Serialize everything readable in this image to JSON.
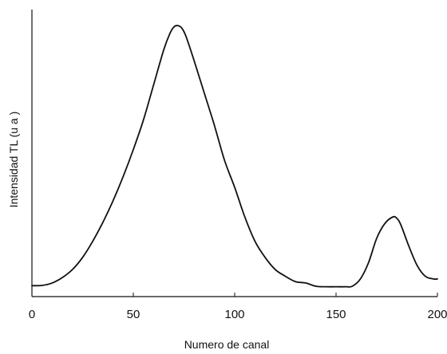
{
  "chart_data": {
    "type": "line",
    "xlabel": "Numero de canal",
    "ylabel": "Intensidad TL (u a )",
    "xlim": [
      0,
      200
    ],
    "ylim": [
      0,
      100
    ],
    "x_ticks": [
      0,
      50,
      100,
      150,
      200
    ],
    "x_tick_labels": [
      "0",
      "50",
      "100",
      "150",
      "200"
    ],
    "y_tick_labels": [],
    "grid": false,
    "legend": "none",
    "series": [
      {
        "x": [
          0,
          5,
          10,
          15,
          20,
          25,
          30,
          35,
          40,
          45,
          50,
          55,
          60,
          65,
          68,
          70,
          72,
          74,
          76,
          80,
          85,
          90,
          95,
          100,
          105,
          110,
          115,
          120,
          125,
          130,
          135,
          140,
          145,
          150,
          155,
          158,
          162,
          166,
          170,
          174,
          178,
          180,
          182,
          186,
          190,
          194,
          198,
          200
        ],
        "y": [
          0.5,
          0.6,
          1.5,
          3.5,
          6.5,
          11,
          17,
          24,
          32,
          41,
          51,
          62,
          75,
          88,
          94,
          96.5,
          97,
          96,
          93,
          84,
          72,
          60,
          47,
          37,
          26,
          17,
          11,
          6.5,
          4,
          2,
          1.5,
          0.3,
          0.1,
          0.1,
          0.1,
          0.3,
          3,
          9,
          18,
          23.5,
          26,
          25.5,
          23,
          15,
          8,
          4,
          3,
          3
        ]
      }
    ]
  }
}
